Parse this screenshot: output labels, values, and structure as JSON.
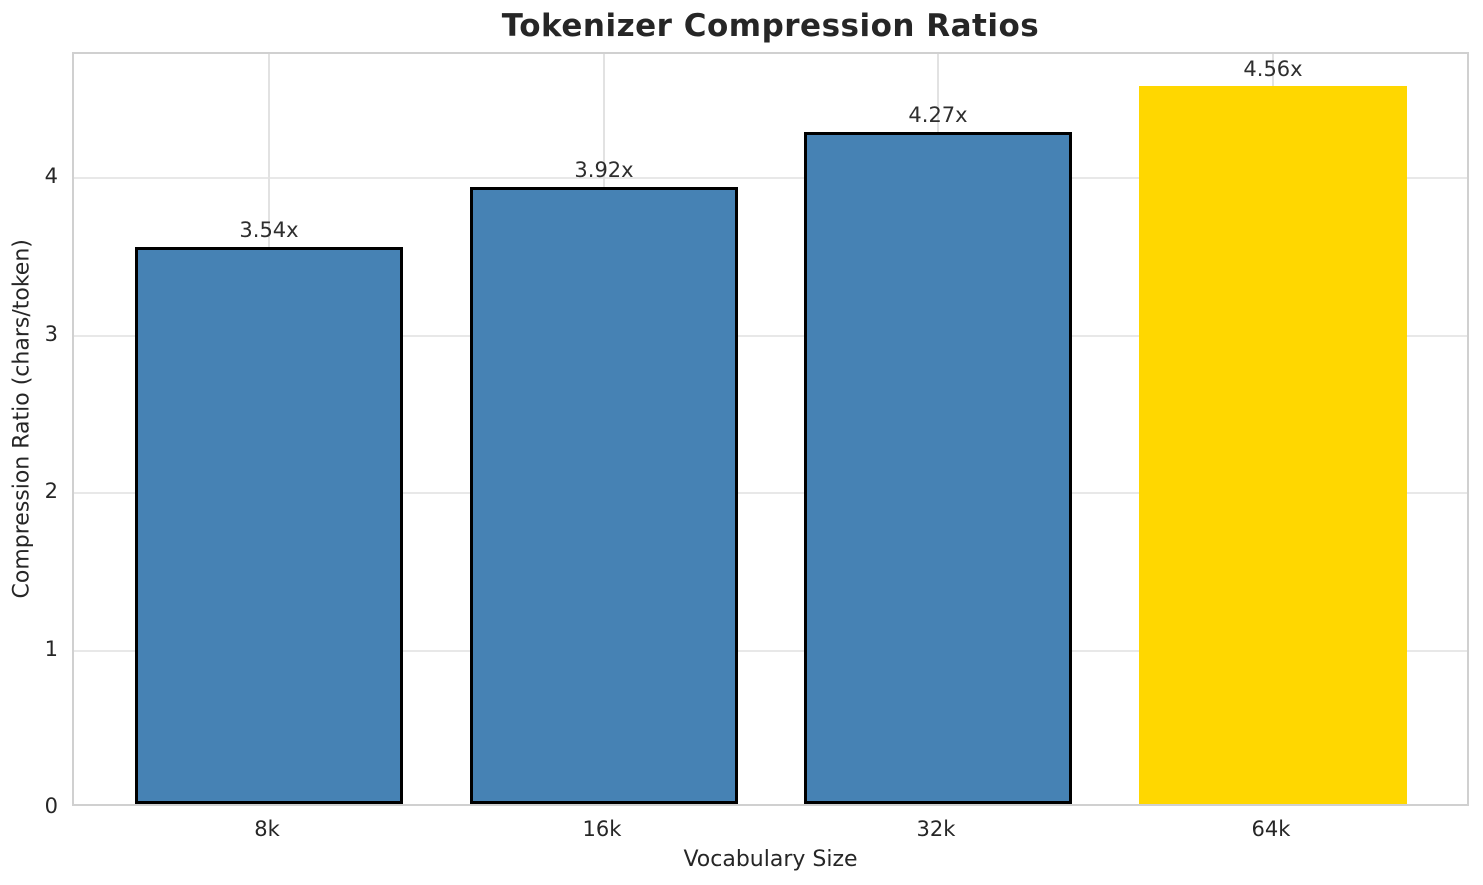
{
  "chart_data": {
    "type": "bar",
    "title": "Tokenizer Compression Ratios",
    "xlabel": "Vocabulary Size",
    "ylabel": "Compression Ratio (chars/token)",
    "categories": [
      "8k",
      "16k",
      "32k",
      "64k"
    ],
    "values": [
      3.54,
      3.92,
      4.27,
      4.56
    ],
    "bar_labels": [
      "3.54x",
      "3.92x",
      "4.27x",
      "4.56x"
    ],
    "yticks": [
      0,
      1,
      2,
      3,
      4
    ],
    "ylim": [
      0,
      4.79
    ],
    "grid": "on",
    "legend_position": "none",
    "bar_fill_colors": [
      "#4682B4",
      "#4682B4",
      "#4682B4",
      "#FFD700"
    ],
    "bar_edge_colors": [
      "#000000",
      "#000000",
      "#000000",
      "none"
    ],
    "highlighted_category": "64k"
  },
  "style_colors": {
    "grid_color": "#e8e8e8",
    "spine_color": "#d0d0d0",
    "text_color": "#262626",
    "background": "#ffffff"
  }
}
